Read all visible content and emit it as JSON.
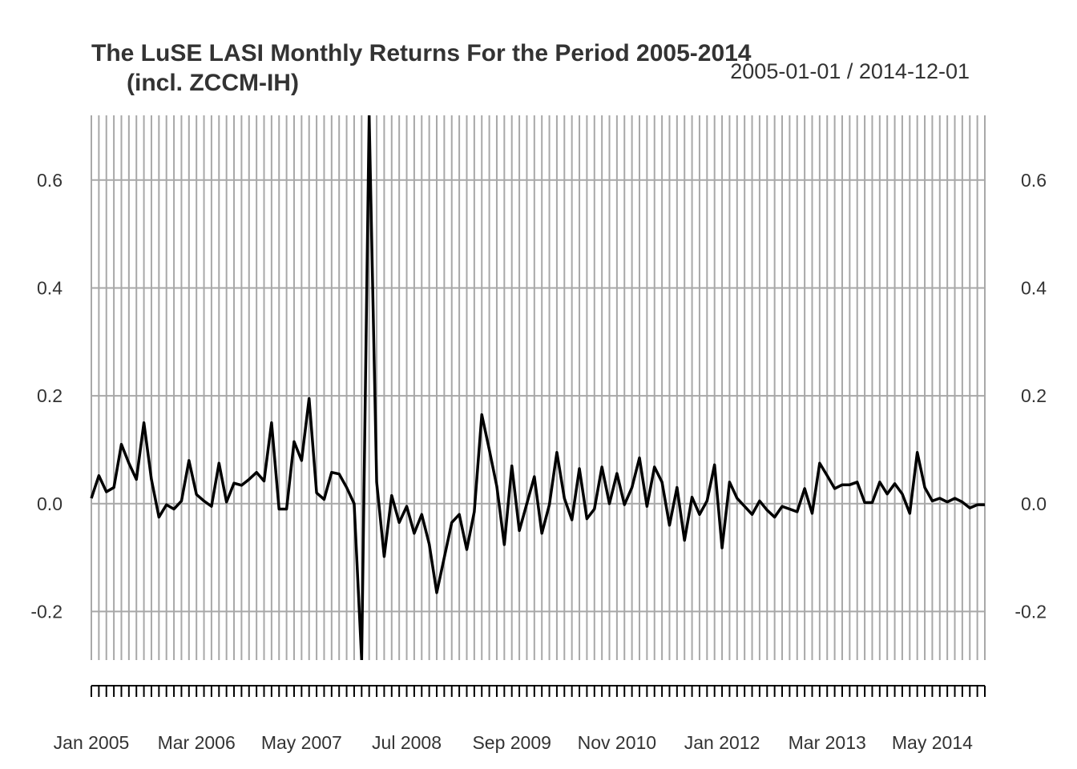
{
  "chart_data": {
    "type": "line",
    "title": "The LuSE LASI Monthly Returns For the Period 2005-2014",
    "subtitle": "(incl. ZCCM-IH)",
    "date_range": "2005-01-01 / 2014-12-01",
    "xlabel": "",
    "ylabel": "",
    "x_start": "2005-01",
    "x_end": "2014-12",
    "ylim": [
      -0.29,
      0.72
    ],
    "y_ticks": [
      "-0.2",
      "0.0",
      "0.2",
      "0.4",
      "0.6"
    ],
    "x_tick_labels": [
      "Jan 2005",
      "Mar 2006",
      "May 2007",
      "Jul 2008",
      "Sep 2009",
      "Nov 2010",
      "Jan 2012",
      "Mar 2013",
      "May 2014"
    ],
    "grid": "vertical lines at every month, horizontal lines at y ticks",
    "line_color": "#000000",
    "grid_color": "#a8a8a8",
    "series": [
      {
        "values": [
          0.01,
          0.052,
          0.022,
          0.03,
          0.11,
          0.075,
          0.045,
          0.15,
          0.045,
          -0.025,
          -0.002,
          -0.01,
          0.005,
          0.08,
          0.017,
          0.005,
          -0.005,
          0.075,
          0.003,
          0.038,
          0.034,
          0.045,
          0.058,
          0.042,
          0.15,
          -0.01,
          -0.01,
          0.115,
          0.08,
          0.195,
          0.02,
          0.008,
          0.058,
          0.055,
          0.03,
          0.0,
          -0.29,
          0.72,
          0.04,
          -0.098,
          0.015,
          -0.035,
          -0.005,
          -0.055,
          -0.02,
          -0.075,
          -0.165,
          -0.1,
          -0.035,
          -0.02,
          -0.085,
          -0.015,
          0.165,
          0.1,
          0.032,
          -0.076,
          0.07,
          -0.05,
          0.0,
          0.05,
          -0.055,
          -0.002,
          0.095,
          0.01,
          -0.03,
          0.065,
          -0.028,
          -0.01,
          0.068,
          0.0,
          0.056,
          -0.002,
          0.03,
          0.085,
          -0.005,
          0.068,
          0.04,
          -0.04,
          0.03,
          -0.068,
          0.012,
          -0.02,
          0.005,
          0.072,
          -0.082,
          0.04,
          0.01,
          -0.005,
          -0.02,
          0.005,
          -0.012,
          -0.025,
          -0.005,
          -0.01,
          -0.015,
          0.028,
          -0.018,
          0.075,
          0.052,
          0.028,
          0.035,
          0.035,
          0.04,
          0.002,
          0.002,
          0.04,
          0.018,
          0.037,
          0.018,
          -0.018,
          0.095,
          0.03,
          0.005,
          0.01,
          0.003,
          0.01,
          0.003,
          -0.008,
          -0.002,
          -0.002
        ]
      }
    ]
  }
}
